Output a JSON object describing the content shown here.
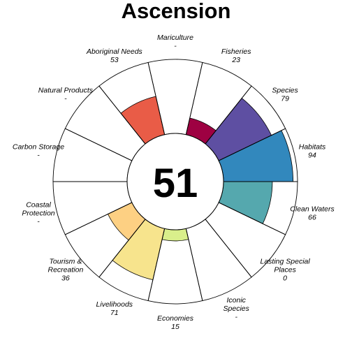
{
  "chart_data": {
    "type": "flower",
    "title": "Ascension",
    "center_score": "51",
    "petal_max": 100,
    "petals": [
      {
        "name": [
          "Fisheries"
        ],
        "value_label": "23",
        "value": 23,
        "color": "#9E0142"
      },
      {
        "name": [
          "Species"
        ],
        "value_label": "79",
        "value": 79,
        "color": "#5E4FA2"
      },
      {
        "name": [
          "Habitats"
        ],
        "value_label": "94",
        "value": 94,
        "color": "#3288BD"
      },
      {
        "name": [
          "Clean Waters"
        ],
        "value_label": "66",
        "value": 66,
        "color": "#55A8AE"
      },
      {
        "name": [
          "Lasting Special",
          "Places"
        ],
        "value_label": "0",
        "value": 0,
        "color": "#ABDDA4"
      },
      {
        "name": [
          "Iconic",
          "Species"
        ],
        "value_label": "-",
        "value": null,
        "color": "#C5E8A0"
      },
      {
        "name": [
          "Economies"
        ],
        "value_label": "15",
        "value": 15,
        "color": "#D9EF8B"
      },
      {
        "name": [
          "Livelihoods"
        ],
        "value_label": "71",
        "value": 71,
        "color": "#F7E48D"
      },
      {
        "name": [
          "Tourism &",
          "Recreation"
        ],
        "value_label": "36",
        "value": 36,
        "color": "#FDD083"
      },
      {
        "name": [
          "Coastal",
          "Protection"
        ],
        "value_label": "-",
        "value": null,
        "color": "#FDAE61"
      },
      {
        "name": [
          "Carbon Storage"
        ],
        "value_label": "-",
        "value": null,
        "color": "#F88D52"
      },
      {
        "name": [
          "Natural Products"
        ],
        "value_label": "-",
        "value": null,
        "color": "#F46D43"
      },
      {
        "name": [
          "Aboriginal Needs"
        ],
        "value_label": "53",
        "value": 53,
        "color": "#E95C47"
      },
      {
        "name": [
          "Mariculture"
        ],
        "value_label": "-",
        "value": null,
        "color": "#D53E4F"
      }
    ]
  }
}
